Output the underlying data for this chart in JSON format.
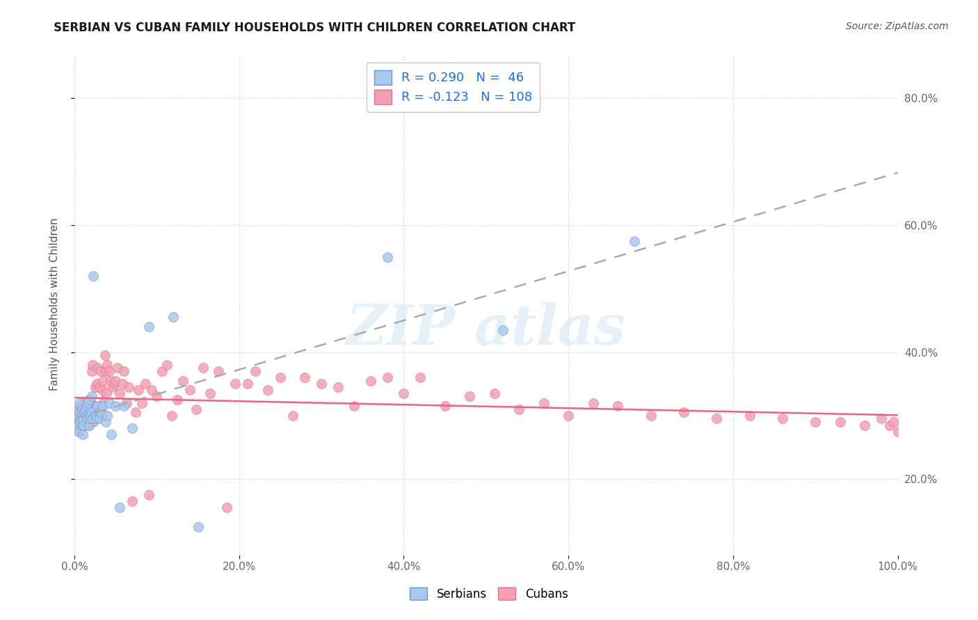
{
  "title": "SERBIAN VS CUBAN FAMILY HOUSEHOLDS WITH CHILDREN CORRELATION CHART",
  "source": "Source: ZipAtlas.com",
  "ylabel": "Family Households with Children",
  "legend_serbian": "R = 0.290   N =  46",
  "legend_cuban": "R = -0.123   N = 108",
  "serbian_color": "#a8c8f0",
  "serbian_edge": "#6699cc",
  "cuban_color": "#f4a0b0",
  "cuban_edge": "#e07090",
  "trendline_serbian_color": "#aaaaaa",
  "trendline_cuban_color": "#f06080",
  "xlim": [
    0.0,
    1.0
  ],
  "ylim": [
    0.08,
    0.87
  ],
  "xticks": [
    0.0,
    0.2,
    0.4,
    0.6,
    0.8,
    1.0
  ],
  "xtick_labels": [
    "0.0%",
    "20.0%",
    "40.0%",
    "60.0%",
    "80.0%",
    "100.0%"
  ],
  "ytick_vals_right": [
    0.2,
    0.4,
    0.6,
    0.8
  ],
  "ytick_labels_right": [
    "20.0%",
    "40.0%",
    "60.0%",
    "80.0%"
  ],
  "serbian_x": [
    0.003,
    0.004,
    0.005,
    0.006,
    0.006,
    0.007,
    0.008,
    0.009,
    0.009,
    0.01,
    0.01,
    0.011,
    0.012,
    0.013,
    0.014,
    0.015,
    0.015,
    0.016,
    0.017,
    0.018,
    0.018,
    0.019,
    0.02,
    0.021,
    0.022,
    0.023,
    0.025,
    0.027,
    0.028,
    0.03,
    0.032,
    0.035,
    0.038,
    0.04,
    0.042,
    0.045,
    0.05,
    0.055,
    0.06,
    0.07,
    0.09,
    0.12,
    0.15,
    0.38,
    0.52,
    0.68
  ],
  "serbian_y": [
    0.285,
    0.295,
    0.275,
    0.305,
    0.32,
    0.29,
    0.3,
    0.285,
    0.31,
    0.27,
    0.295,
    0.285,
    0.305,
    0.31,
    0.3,
    0.295,
    0.315,
    0.32,
    0.3,
    0.285,
    0.325,
    0.295,
    0.305,
    0.33,
    0.295,
    0.52,
    0.3,
    0.295,
    0.315,
    0.295,
    0.305,
    0.315,
    0.29,
    0.3,
    0.32,
    0.27,
    0.315,
    0.155,
    0.315,
    0.28,
    0.44,
    0.455,
    0.125,
    0.55,
    0.435,
    0.575
  ],
  "cuban_x": [
    0.004,
    0.006,
    0.007,
    0.008,
    0.009,
    0.01,
    0.011,
    0.012,
    0.013,
    0.014,
    0.015,
    0.016,
    0.017,
    0.018,
    0.019,
    0.02,
    0.021,
    0.022,
    0.023,
    0.024,
    0.025,
    0.026,
    0.027,
    0.028,
    0.029,
    0.03,
    0.031,
    0.032,
    0.033,
    0.034,
    0.035,
    0.036,
    0.037,
    0.038,
    0.039,
    0.04,
    0.042,
    0.044,
    0.046,
    0.048,
    0.05,
    0.052,
    0.055,
    0.058,
    0.06,
    0.063,
    0.066,
    0.07,
    0.074,
    0.078,
    0.082,
    0.086,
    0.09,
    0.094,
    0.1,
    0.106,
    0.112,
    0.118,
    0.125,
    0.132,
    0.14,
    0.148,
    0.156,
    0.165,
    0.175,
    0.185,
    0.195,
    0.21,
    0.22,
    0.235,
    0.25,
    0.265,
    0.28,
    0.3,
    0.32,
    0.34,
    0.36,
    0.38,
    0.4,
    0.42,
    0.45,
    0.48,
    0.51,
    0.54,
    0.57,
    0.6,
    0.63,
    0.66,
    0.7,
    0.74,
    0.78,
    0.82,
    0.86,
    0.9,
    0.93,
    0.96,
    0.98,
    0.99,
    0.995,
    1.0,
    0.005,
    0.006,
    0.008,
    0.01,
    0.012,
    0.015,
    0.018,
    0.02
  ],
  "cuban_y": [
    0.295,
    0.275,
    0.315,
    0.31,
    0.29,
    0.32,
    0.3,
    0.305,
    0.285,
    0.315,
    0.295,
    0.305,
    0.29,
    0.32,
    0.31,
    0.32,
    0.37,
    0.38,
    0.29,
    0.315,
    0.345,
    0.3,
    0.35,
    0.375,
    0.305,
    0.345,
    0.315,
    0.37,
    0.3,
    0.34,
    0.355,
    0.325,
    0.395,
    0.37,
    0.335,
    0.38,
    0.37,
    0.355,
    0.345,
    0.35,
    0.355,
    0.375,
    0.335,
    0.35,
    0.37,
    0.32,
    0.345,
    0.165,
    0.305,
    0.34,
    0.32,
    0.35,
    0.175,
    0.34,
    0.33,
    0.37,
    0.38,
    0.3,
    0.325,
    0.355,
    0.34,
    0.31,
    0.375,
    0.335,
    0.37,
    0.155,
    0.35,
    0.35,
    0.37,
    0.34,
    0.36,
    0.3,
    0.36,
    0.35,
    0.345,
    0.315,
    0.355,
    0.36,
    0.335,
    0.36,
    0.315,
    0.33,
    0.335,
    0.31,
    0.32,
    0.3,
    0.32,
    0.315,
    0.3,
    0.305,
    0.295,
    0.3,
    0.295,
    0.29,
    0.29,
    0.285,
    0.295,
    0.285,
    0.29,
    0.275,
    0.31,
    0.285,
    0.3,
    0.295,
    0.315,
    0.305,
    0.285,
    0.295
  ],
  "background_color": "#ffffff",
  "grid_color": "#e0e0e0"
}
